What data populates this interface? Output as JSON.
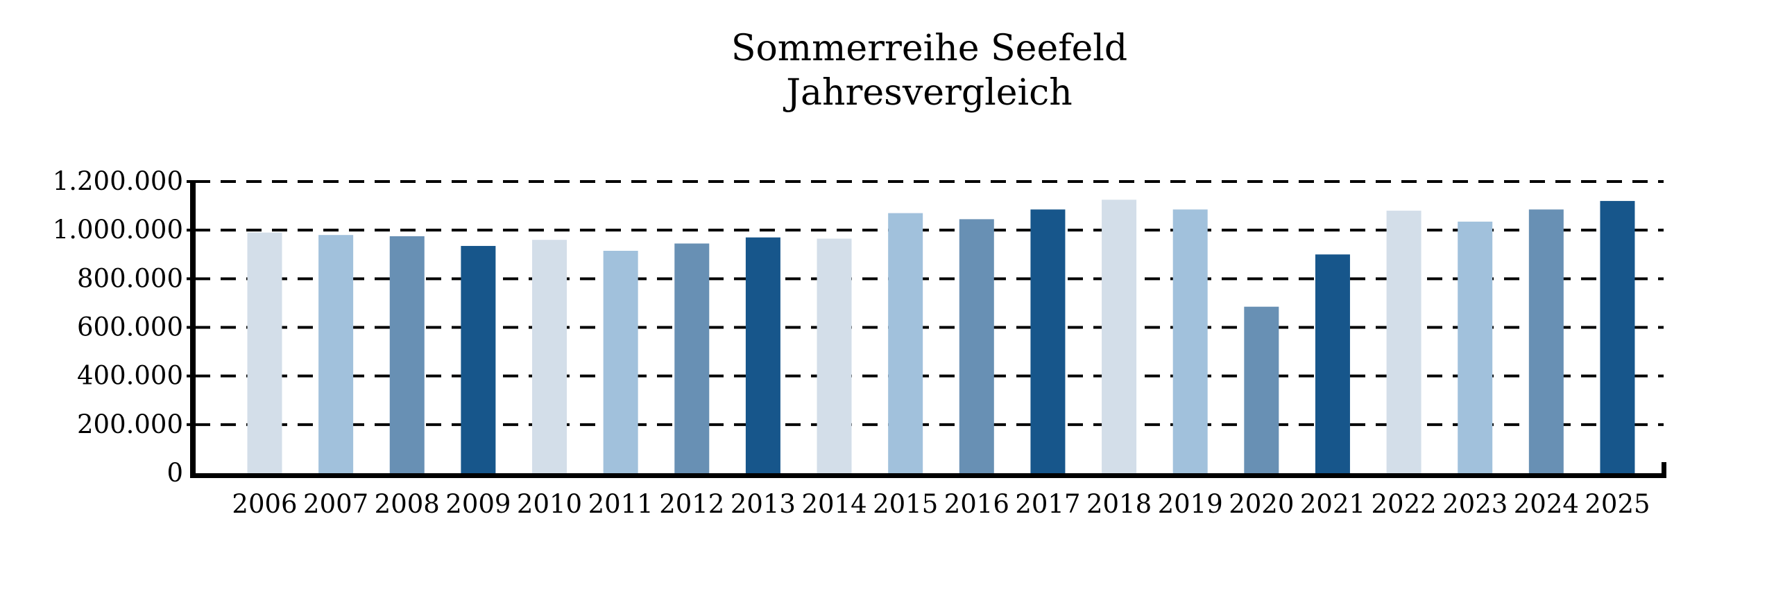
{
  "chart": {
    "title_line1": "Sommerreihe Seefeld",
    "title_line2": "Jahresvergleich"
  },
  "chart_data": {
    "type": "bar",
    "title": "Sommerreihe Seefeld Jahresvergleich",
    "subtitle": "Jahresvergleich",
    "categories": [
      "2006",
      "2007",
      "2008",
      "2009",
      "2010",
      "2011",
      "2012",
      "2013",
      "2014",
      "2015",
      "2016",
      "2017",
      "2018",
      "2019",
      "2020",
      "2021",
      "2022",
      "2023",
      "2024",
      "2025"
    ],
    "values": [
      990000,
      980000,
      975000,
      935000,
      960000,
      915000,
      945000,
      970000,
      965000,
      1070000,
      1045000,
      1085000,
      1125000,
      1085000,
      685000,
      900000,
      1080000,
      1035000,
      1085000,
      1120000
    ],
    "xlabel": "",
    "ylabel": "",
    "ylim": [
      0,
      1200000
    ],
    "ytick_step": 200000,
    "ytick_labels": [
      "0",
      "200.000",
      "400.000",
      "600.000",
      "800.000",
      "1.000.000",
      "1.200.000"
    ],
    "grid": "horizontal-dashed",
    "legend_position": "none",
    "bar_color_cycle": [
      "#d3dee9",
      "#a1c1dc",
      "#6890b4",
      "#17568b"
    ],
    "axis_color": "#000000",
    "text_color": "#000000",
    "background_color": "#ffffff"
  }
}
